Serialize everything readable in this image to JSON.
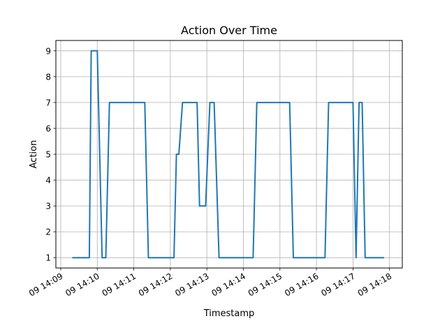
{
  "chart_data": {
    "type": "line",
    "title": "Action Over Time",
    "xlabel": "Timestamp",
    "ylabel": "Action",
    "grid": true,
    "line_color": "#1f77b4",
    "x_tick_labels": [
      "09 14:09",
      "09 14:10",
      "09 14:11",
      "09 14:12",
      "09 14:13",
      "09 14:14",
      "09 14:15",
      "09 14:16",
      "09 14:17",
      "09 14:18"
    ],
    "y_ticks": [
      1,
      2,
      3,
      4,
      5,
      6,
      7,
      8,
      9
    ],
    "xlim": [
      "14:08:52",
      "14:18:21"
    ],
    "ylim": [
      0.6,
      9.4
    ],
    "series": [
      {
        "x": [
          "14:09:20",
          "14:09:47",
          "14:09:50",
          "14:10:00",
          "14:10:08",
          "14:10:14",
          "14:10:20",
          "14:11:18",
          "14:11:24",
          "14:12:06",
          "14:12:10",
          "14:12:14",
          "14:12:20",
          "14:12:44",
          "14:12:48",
          "14:12:58",
          "14:13:05",
          "14:13:12",
          "14:13:20",
          "14:14:16",
          "14:14:22",
          "14:15:16",
          "14:15:22",
          "14:16:14",
          "14:16:20",
          "14:17:00",
          "14:17:05",
          "14:17:10",
          "14:17:15",
          "14:17:20",
          "14:17:50"
        ],
        "y": [
          1,
          1,
          9,
          9,
          1,
          1,
          7,
          7,
          1,
          1,
          5,
          5,
          7,
          7,
          3,
          3,
          7,
          7,
          1,
          1,
          7,
          7,
          1,
          1,
          7,
          7,
          1,
          7,
          7,
          1,
          1
        ]
      }
    ]
  }
}
